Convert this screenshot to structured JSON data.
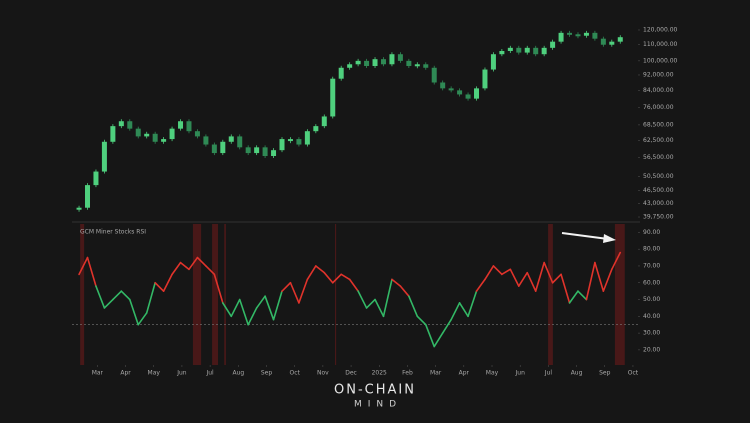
{
  "chart_data": [
    {
      "type": "candlestick",
      "log_scale": true,
      "up_color": "#4fd07e",
      "down_color": "#2f8a55",
      "xlim": [
        2.1,
        22.25
      ],
      "ylim": [
        38600,
        125800
      ],
      "yticks": [
        {
          "value": 120000,
          "label": "120,000.00"
        },
        {
          "value": 110000,
          "label": "110,000.00"
        },
        {
          "value": 100000,
          "label": "100,000.00"
        },
        {
          "value": 92000,
          "label": "92,000.00"
        },
        {
          "value": 84000,
          "label": "84,000.00"
        },
        {
          "value": 76000,
          "label": "76,000.00"
        },
        {
          "value": 68500,
          "label": "68,500.00"
        },
        {
          "value": 62500,
          "label": "62,500.00"
        },
        {
          "value": 56500,
          "label": "56,500.00"
        },
        {
          "value": 50500,
          "label": "50,500.00"
        },
        {
          "value": 46500,
          "label": "46,500.00"
        },
        {
          "value": 43000,
          "label": "43,000.00"
        },
        {
          "value": 39750,
          "label": "39,750.00"
        }
      ],
      "x": [
        2.35,
        2.65,
        2.95,
        3.25,
        3.55,
        3.85,
        4.15,
        4.45,
        4.75,
        5.05,
        5.35,
        5.65,
        5.95,
        6.25,
        6.55,
        6.85,
        7.15,
        7.45,
        7.75,
        8.05,
        8.35,
        8.65,
        8.95,
        9.25,
        9.55,
        9.85,
        10.15,
        10.45,
        10.75,
        11.05,
        11.35,
        11.65,
        11.95,
        12.25,
        12.55,
        12.85,
        13.15,
        13.45,
        13.75,
        14.05,
        14.35,
        14.65,
        14.95,
        15.25,
        15.55,
        15.85,
        16.15,
        16.45,
        16.75,
        17.05,
        17.35,
        17.65,
        17.95,
        18.25,
        18.55,
        18.85,
        19.15,
        19.45,
        19.75,
        20.05,
        20.35,
        20.65,
        20.95,
        21.25,
        21.55
      ],
      "values": [
        42000,
        48000,
        52000,
        62000,
        68000,
        70000,
        67000,
        64000,
        65000,
        62000,
        63000,
        67000,
        70000,
        66000,
        64000,
        61000,
        58000,
        62000,
        64000,
        60000,
        58000,
        60000,
        57000,
        59000,
        63000,
        63000,
        61000,
        66000,
        68000,
        72000,
        90000,
        96000,
        98000,
        100000,
        97000,
        101000,
        98000,
        104000,
        100000,
        97000,
        98000,
        96000,
        88000,
        85000,
        84000,
        82000,
        80000,
        85000,
        95000,
        104000,
        106000,
        108000,
        105000,
        108000,
        104000,
        108000,
        112000,
        118000,
        117000,
        116000,
        118000,
        114000,
        110000,
        112000,
        115000
      ]
    },
    {
      "type": "line",
      "title": "GCM Miner Stocks RSI",
      "high_color": "#e0332b",
      "low_color": "#33b866",
      "xlim": [
        2.1,
        22.25
      ],
      "ylim": [
        11,
        95
      ],
      "reference_line": 35,
      "highlights": [
        [
          2.39,
          2.53
        ],
        [
          6.39,
          6.68
        ],
        [
          7.07,
          7.28
        ],
        [
          7.5,
          7.56
        ],
        [
          11.43,
          11.47
        ],
        [
          18.99,
          19.16
        ],
        [
          21.36,
          21.71
        ]
      ],
      "yticks": [
        {
          "value": 90,
          "label": "90.00"
        },
        {
          "value": 80,
          "label": "80.00"
        },
        {
          "value": 70,
          "label": "70.00"
        },
        {
          "value": 60,
          "label": "60.00"
        },
        {
          "value": 50,
          "label": "50.00"
        },
        {
          "value": 40,
          "label": "40.00"
        },
        {
          "value": 30,
          "label": "30.00"
        },
        {
          "value": 20,
          "label": "20.00"
        }
      ],
      "xticks": [
        {
          "value": 3,
          "label": "Mar"
        },
        {
          "value": 4,
          "label": "Apr"
        },
        {
          "value": 5,
          "label": "May"
        },
        {
          "value": 6,
          "label": "Jun"
        },
        {
          "value": 7,
          "label": "Jul"
        },
        {
          "value": 8,
          "label": "Aug"
        },
        {
          "value": 9,
          "label": "Sep"
        },
        {
          "value": 10,
          "label": "Oct"
        },
        {
          "value": 11,
          "label": "Nov"
        },
        {
          "value": 12,
          "label": "Dec"
        },
        {
          "value": 13,
          "label": "2025"
        },
        {
          "value": 14,
          "label": "Feb"
        },
        {
          "value": 15,
          "label": "Mar"
        },
        {
          "value": 16,
          "label": "Apr"
        },
        {
          "value": 17,
          "label": "May"
        },
        {
          "value": 18,
          "label": "Jun"
        },
        {
          "value": 19,
          "label": "Jul"
        },
        {
          "value": 20,
          "label": "Aug"
        },
        {
          "value": 21,
          "label": "Sep"
        },
        {
          "value": 22,
          "label": "Oct"
        }
      ],
      "x": [
        2.35,
        2.65,
        2.95,
        3.25,
        3.55,
        3.85,
        4.15,
        4.45,
        4.75,
        5.05,
        5.35,
        5.65,
        5.95,
        6.25,
        6.55,
        6.85,
        7.15,
        7.45,
        7.75,
        8.05,
        8.35,
        8.65,
        8.95,
        9.25,
        9.55,
        9.85,
        10.15,
        10.45,
        10.75,
        11.05,
        11.35,
        11.65,
        11.95,
        12.25,
        12.55,
        12.85,
        13.15,
        13.45,
        13.75,
        14.05,
        14.35,
        14.65,
        14.95,
        15.25,
        15.55,
        15.85,
        16.15,
        16.45,
        16.75,
        17.05,
        17.35,
        17.65,
        17.95,
        18.25,
        18.55,
        18.85,
        19.15,
        19.45,
        19.75,
        20.05,
        20.35,
        20.65,
        20.95,
        21.25,
        21.55
      ],
      "values": [
        65,
        75,
        58,
        45,
        50,
        55,
        50,
        35,
        42,
        60,
        55,
        65,
        72,
        68,
        75,
        70,
        65,
        48,
        40,
        50,
        35,
        45,
        52,
        38,
        55,
        60,
        48,
        62,
        70,
        66,
        60,
        65,
        62,
        55,
        45,
        50,
        40,
        62,
        58,
        52,
        40,
        35,
        22,
        30,
        38,
        48,
        40,
        55,
        62,
        70,
        65,
        68,
        58,
        66,
        55,
        72,
        60,
        65,
        48,
        55,
        50,
        72,
        55,
        68,
        78
      ]
    }
  ],
  "branding": {
    "name": "ON-CHAIN",
    "tagline": "MIND"
  }
}
